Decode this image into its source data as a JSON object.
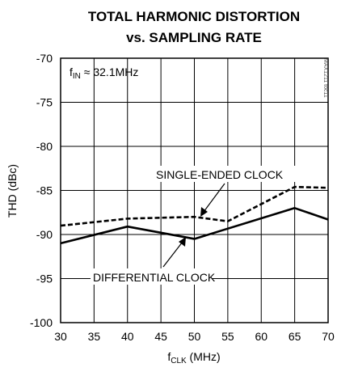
{
  "chart_data": {
    "type": "line",
    "title": [
      "TOTAL HARMONIC DISTORTION",
      "vs. SAMPLING RATE"
    ],
    "xlabel": {
      "main": "f",
      "sub": "CLK",
      "rest": " (MHz)"
    },
    "ylabel": "THD (dBc)",
    "xlim": [
      30,
      70
    ],
    "ylim": [
      -100,
      -70
    ],
    "xticks": [
      30,
      35,
      40,
      45,
      50,
      55,
      60,
      65,
      70
    ],
    "yticks": [
      -100,
      -95,
      -90,
      -85,
      -80,
      -75,
      -70
    ],
    "grid": true,
    "condition": {
      "main": "f",
      "sub": "IN",
      "rest": " ≈ 32.1MHz"
    },
    "watermark": "MAX1211 toc11",
    "series": [
      {
        "name": "SINGLE-ENDED CLOCK",
        "style": "dashed",
        "x": [
          30,
          40,
          50,
          55,
          65,
          70
        ],
        "y": [
          -89.0,
          -88.2,
          -88.0,
          -88.5,
          -84.6,
          -84.7
        ]
      },
      {
        "name": "DIFFERENTIAL CLOCK",
        "style": "solid",
        "x": [
          30,
          40,
          50,
          65,
          70
        ],
        "y": [
          -91.0,
          -89.1,
          -90.5,
          -87.0,
          -88.3
        ]
      }
    ],
    "colors": {
      "line": "#000000",
      "grid": "#000000",
      "background": "#ffffff"
    }
  }
}
